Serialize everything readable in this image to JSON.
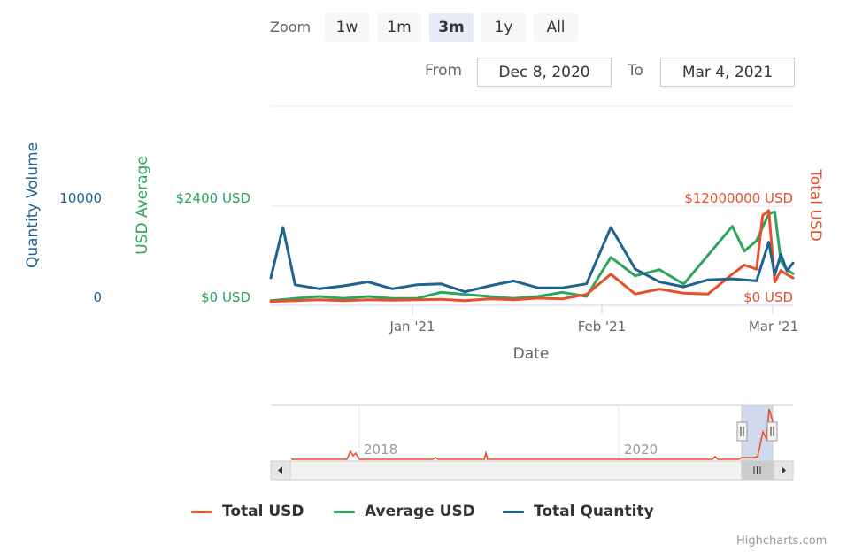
{
  "rangeSelector": {
    "zoom_label": "Zoom",
    "buttons": [
      {
        "label": "1w",
        "active": false
      },
      {
        "label": "1m",
        "active": false
      },
      {
        "label": "3m",
        "active": true
      },
      {
        "label": "1y",
        "active": false
      },
      {
        "label": "All",
        "active": false
      }
    ],
    "from_label": "From",
    "from_value": "Dec 8, 2020",
    "to_label": "To",
    "to_value": "Mar 4, 2021"
  },
  "credits": "Highcharts.com",
  "colors": {
    "total_usd": "#e8502c",
    "average_usd": "#2ea55f",
    "total_quantity": "#1f6391"
  },
  "chart_data": {
    "type": "line",
    "x_range": [
      "2020-12-08",
      "2021-03-04"
    ],
    "xlabel": "Date",
    "x_ticks": [
      "Jan '21",
      "Feb '21",
      "Mar '21"
    ],
    "y_axes": [
      {
        "id": "quantity",
        "title": "Quantity Volume",
        "position": "left",
        "ticks": [
          "0",
          "10000"
        ]
      },
      {
        "id": "average",
        "title": "USD Average",
        "position": "left",
        "ticks": [
          "$0 USD",
          "$2400 USD"
        ]
      },
      {
        "id": "total",
        "title": "Total USD",
        "position": "right",
        "ticks": [
          "$0 USD",
          "$12000000 USD"
        ]
      }
    ],
    "series": [
      {
        "name": "Total USD",
        "axis": "total",
        "values": [
          [
            "2020-12-08",
            150000
          ],
          [
            "2020-12-12",
            250000
          ],
          [
            "2020-12-16",
            350000
          ],
          [
            "2020-12-20",
            250000
          ],
          [
            "2020-12-24",
            350000
          ],
          [
            "2020-12-28",
            300000
          ],
          [
            "2021-01-01",
            350000
          ],
          [
            "2021-01-05",
            400000
          ],
          [
            "2021-01-09",
            250000
          ],
          [
            "2021-01-13",
            450000
          ],
          [
            "2021-01-17",
            350000
          ],
          [
            "2021-01-21",
            550000
          ],
          [
            "2021-01-25",
            450000
          ],
          [
            "2021-01-29",
            1000000
          ],
          [
            "2021-02-02",
            3450000
          ],
          [
            "2021-02-06",
            1050000
          ],
          [
            "2021-02-10",
            1650000
          ],
          [
            "2021-02-14",
            1150000
          ],
          [
            "2021-02-18",
            1050000
          ],
          [
            "2021-02-22",
            3450000
          ],
          [
            "2021-02-24",
            4550000
          ],
          [
            "2021-02-26",
            4050000
          ],
          [
            "2021-02-27",
            10550000
          ],
          [
            "2021-02-28",
            11150000
          ],
          [
            "2021-03-01",
            2500000
          ],
          [
            "2021-03-02",
            3900000
          ],
          [
            "2021-03-03",
            3400000
          ],
          [
            "2021-03-04",
            3000000
          ]
        ]
      },
      {
        "name": "Average USD",
        "axis": "average",
        "values": [
          [
            "2020-12-08",
            50
          ],
          [
            "2020-12-12",
            100
          ],
          [
            "2020-12-16",
            150
          ],
          [
            "2020-12-20",
            100
          ],
          [
            "2020-12-24",
            150
          ],
          [
            "2020-12-28",
            100
          ],
          [
            "2021-01-01",
            100
          ],
          [
            "2021-01-05",
            250
          ],
          [
            "2021-01-09",
            200
          ],
          [
            "2021-01-13",
            150
          ],
          [
            "2021-01-17",
            100
          ],
          [
            "2021-01-21",
            150
          ],
          [
            "2021-01-25",
            250
          ],
          [
            "2021-01-29",
            150
          ],
          [
            "2021-02-02",
            1100
          ],
          [
            "2021-02-06",
            650
          ],
          [
            "2021-02-10",
            800
          ],
          [
            "2021-02-14",
            450
          ],
          [
            "2021-02-18",
            1150
          ],
          [
            "2021-02-22",
            1850
          ],
          [
            "2021-02-24",
            1250
          ],
          [
            "2021-02-26",
            1500
          ],
          [
            "2021-02-28",
            2150
          ],
          [
            "2021-03-01",
            2200
          ],
          [
            "2021-03-02",
            1000
          ],
          [
            "2021-03-03",
            800
          ],
          [
            "2021-03-04",
            700
          ]
        ]
      },
      {
        "name": "Total Quantity",
        "axis": "quantity",
        "values": [
          [
            "2020-12-08",
            2500
          ],
          [
            "2020-12-10",
            7600
          ],
          [
            "2020-12-12",
            1800
          ],
          [
            "2020-12-16",
            1400
          ],
          [
            "2020-12-20",
            1700
          ],
          [
            "2020-12-24",
            2100
          ],
          [
            "2020-12-28",
            1400
          ],
          [
            "2021-01-01",
            1800
          ],
          [
            "2021-01-05",
            1900
          ],
          [
            "2021-01-09",
            1100
          ],
          [
            "2021-01-13",
            1700
          ],
          [
            "2021-01-17",
            2200
          ],
          [
            "2021-01-21",
            1500
          ],
          [
            "2021-01-25",
            1500
          ],
          [
            "2021-01-29",
            1900
          ],
          [
            "2021-02-02",
            7600
          ],
          [
            "2021-02-06",
            3400
          ],
          [
            "2021-02-10",
            2100
          ],
          [
            "2021-02-14",
            1600
          ],
          [
            "2021-02-18",
            2300
          ],
          [
            "2021-02-22",
            2400
          ],
          [
            "2021-02-26",
            2200
          ],
          [
            "2021-02-28",
            6100
          ],
          [
            "2021-03-01",
            2800
          ],
          [
            "2021-03-02",
            4900
          ],
          [
            "2021-03-03",
            3200
          ],
          [
            "2021-03-04",
            4000
          ]
        ]
      }
    ],
    "navigator": {
      "x_ticks": [
        "2018",
        "2020"
      ],
      "series": "Total USD",
      "selected_range": [
        "Dec 8, 2020",
        "Mar 4, 2021"
      ]
    },
    "legend": {
      "position": "bottom",
      "items": [
        "Total USD",
        "Average USD",
        "Total Quantity"
      ]
    }
  }
}
